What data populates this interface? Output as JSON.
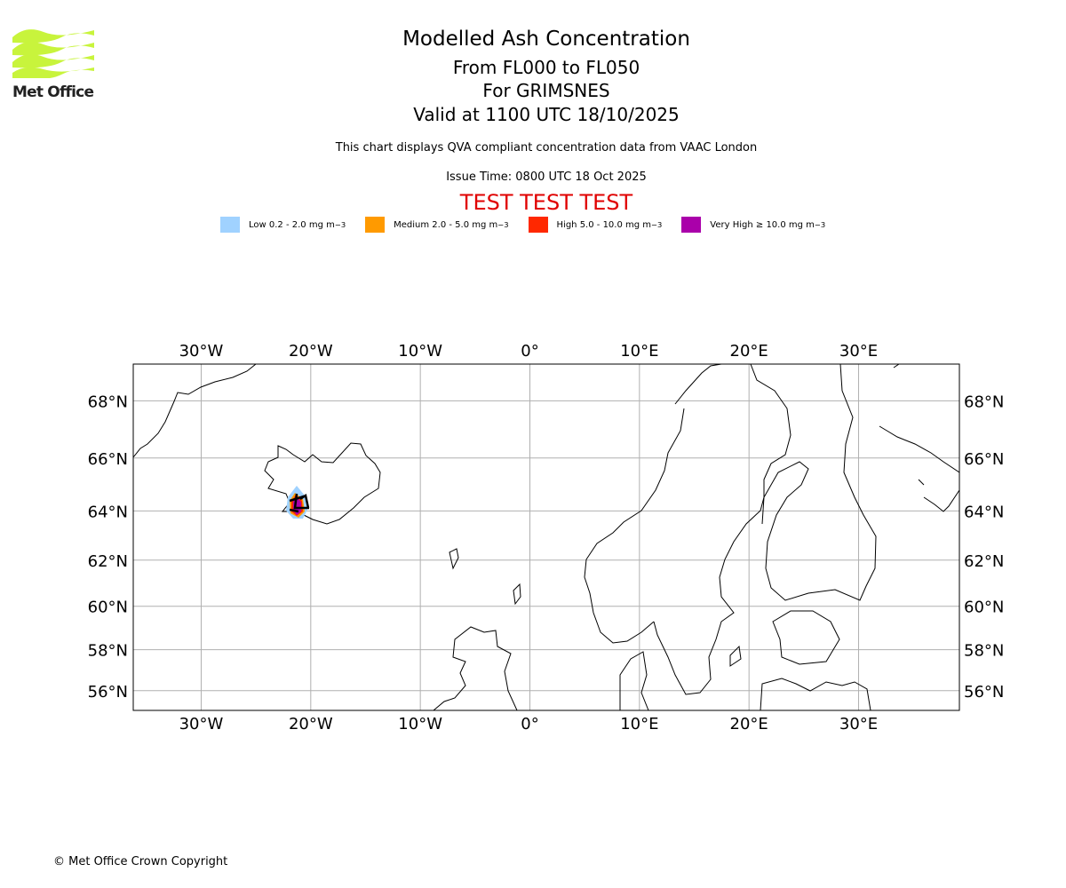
{
  "logo": {
    "text": "Met Office",
    "color": "#c8f43c"
  },
  "header": {
    "title": "Modelled Ash Concentration",
    "level_range": "From FL000 to FL050",
    "volcano": "For GRIMSNES",
    "valid": "Valid at 1100 UTC 18/10/2025",
    "description": "This chart displays QVA compliant concentration data from VAAC London",
    "issue_time": "Issue Time: 0800 UTC 18 Oct 2025",
    "test_banner": "TEST TEST TEST"
  },
  "legend": [
    {
      "label": "Low 0.2 - 2.0 mg m",
      "sup": "−3",
      "color": "#a0d2ff"
    },
    {
      "label": "Medium 2.0 - 5.0 mg m",
      "sup": "−3",
      "color": "#ff9a00"
    },
    {
      "label": "High 5.0 - 10.0 mg m",
      "sup": "−3",
      "color": "#ff2800"
    },
    {
      "label": "Very High ≥ 10.0 mg m",
      "sup": "−3",
      "color": "#aa00aa"
    }
  ],
  "map": {
    "lon_range": [
      -36.2,
      39.2
    ],
    "lat_range": [
      55.0,
      69.2
    ],
    "lon_ticks": [
      {
        "v": -30,
        "label": "30°W"
      },
      {
        "v": -20,
        "label": "20°W"
      },
      {
        "v": -10,
        "label": "10°W"
      },
      {
        "v": 0,
        "label": "0°"
      },
      {
        "v": 10,
        "label": "10°E"
      },
      {
        "v": 20,
        "label": "20°E"
      },
      {
        "v": 30,
        "label": "30°E"
      }
    ],
    "lat_ticks": [
      {
        "v": 68,
        "label": "68°N"
      },
      {
        "v": 66,
        "label": "66°N"
      },
      {
        "v": 64,
        "label": "64°N"
      },
      {
        "v": 62,
        "label": "62°N"
      },
      {
        "v": 60,
        "label": "60°N"
      },
      {
        "v": 58,
        "label": "58°N"
      },
      {
        "v": 56,
        "label": "56°N"
      }
    ]
  },
  "footer": {
    "copyright": "© Met Office Crown Copyright"
  }
}
